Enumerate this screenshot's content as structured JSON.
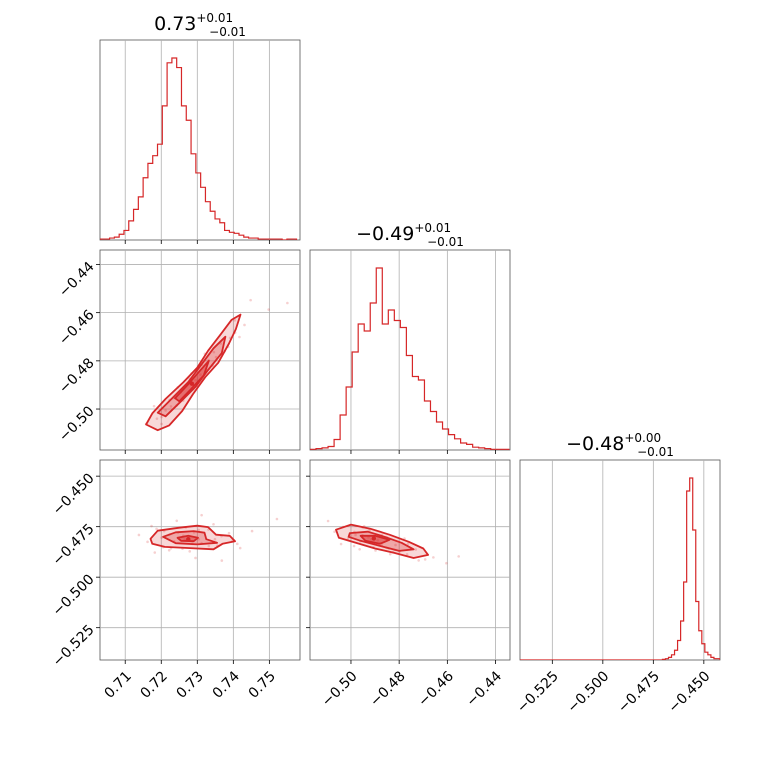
{
  "color": "#d62728",
  "chart_data": {
    "type": "corner",
    "grid": true,
    "parameters": [
      {
        "title": {
          "value": "0.73",
          "plus": "+0.01",
          "minus": "−0.01"
        },
        "range": [
          0.703,
          0.7585
        ],
        "ticks": [
          0.71,
          0.72,
          0.73,
          0.74,
          0.75
        ],
        "tick_labels": [
          "0.71",
          "0.72",
          "0.73",
          "0.74",
          "0.75"
        ],
        "hist": {
          "edges_start": 0.703,
          "bin_width": 0.00133,
          "counts": [
            1,
            1,
            2,
            3,
            6,
            10,
            20,
            32,
            45,
            65,
            80,
            88,
            100,
            140,
            185,
            190,
            180,
            140,
            125,
            90,
            70,
            55,
            40,
            30,
            22,
            18,
            10,
            8,
            7,
            5,
            3,
            2,
            2,
            1,
            1,
            1,
            1,
            1,
            0,
            1,
            1
          ]
        }
      },
      {
        "title": {
          "value": "−0.49",
          "plus": "+0.01",
          "minus": "−0.01"
        },
        "range": [
          -0.517,
          -0.434
        ],
        "ticks": [
          -0.5,
          -0.48,
          -0.46,
          -0.44
        ],
        "tick_labels": [
          "−0.50",
          "−0.48",
          "−0.46",
          "−0.44"
        ],
        "hist": {
          "edges_start": -0.517,
          "bin_width": 0.0025,
          "counts": [
            1,
            2,
            3,
            5,
            15,
            50,
            90,
            140,
            180,
            170,
            210,
            260,
            180,
            200,
            185,
            175,
            135,
            105,
            100,
            70,
            55,
            40,
            30,
            22,
            16,
            10,
            8,
            4,
            3,
            2,
            1,
            1,
            1
          ]
        }
      },
      {
        "title": {
          "value": "−0.48",
          "plus": "+0.00",
          "minus": "−0.01"
        },
        "range": [
          -0.541,
          -0.442
        ],
        "ticks": [
          -0.525,
          -0.5,
          -0.475,
          -0.45
        ],
        "tick_labels": [
          "−0.525",
          "−0.500",
          "−0.475",
          "−0.450"
        ],
        "hist": {
          "edges_start": -0.541,
          "bin_width": 0.0015,
          "counts": [
            0,
            0,
            0,
            0,
            0,
            0,
            0,
            0,
            0,
            0,
            0,
            0,
            0,
            0,
            0,
            0,
            0,
            0,
            0,
            0,
            0,
            0,
            0,
            0,
            0,
            0,
            0,
            0,
            0,
            0,
            0,
            0,
            0,
            0,
            0,
            0,
            0,
            0,
            0,
            0,
            0,
            0,
            0,
            0,
            0,
            0,
            0,
            1,
            2,
            4,
            8,
            15,
            30,
            60,
            120,
            260,
            280,
            200,
            90,
            45,
            25,
            12,
            8,
            4,
            2,
            2,
            1,
            0
          ]
        }
      }
    ],
    "pairs": [
      {
        "x_param": 0,
        "y_param": 1,
        "mean": [
          0.7285,
          -0.4895
        ],
        "points": [
          [
            0.7265,
            -0.4909
          ],
          [
            0.7243,
            -0.4985
          ],
          [
            0.7201,
            -0.5033
          ],
          [
            0.7365,
            -0.4728
          ],
          [
            0.7312,
            -0.4816
          ],
          [
            0.7275,
            -0.4897
          ],
          [
            0.7223,
            -0.4962
          ],
          [
            0.7405,
            -0.4683
          ],
          [
            0.7284,
            -0.4852
          ],
          [
            0.7346,
            -0.4764
          ],
          [
            0.7188,
            -0.504
          ],
          [
            0.7254,
            -0.4931
          ],
          [
            0.7332,
            -0.4798
          ],
          [
            0.7295,
            -0.488
          ],
          [
            0.7448,
            -0.4548
          ],
          [
            0.7391,
            -0.4705
          ],
          [
            0.7212,
            -0.5006
          ],
          [
            0.7325,
            -0.4836
          ],
          [
            0.7267,
            -0.4943
          ],
          [
            0.7352,
            -0.4785
          ],
          [
            0.7498,
            -0.4587
          ],
          [
            0.718,
            -0.4988
          ],
          [
            0.7431,
            -0.4651
          ],
          [
            0.7236,
            -0.4954
          ],
          [
            0.7309,
            -0.4857
          ],
          [
            0.7386,
            -0.4742
          ],
          [
            0.7201,
            -0.5062
          ],
          [
            0.7279,
            -0.4874
          ],
          [
            0.7417,
            -0.4701
          ],
          [
            0.7246,
            -0.491
          ],
          [
            0.755,
            -0.456
          ],
          [
            0.7344,
            -0.4822
          ],
          [
            0.7261,
            -0.4965
          ],
          [
            0.7158,
            -0.5062
          ],
          [
            0.7321,
            -0.4771
          ],
          [
            0.7404,
            -0.4632
          ],
          [
            0.7289,
            -0.4918
          ],
          [
            0.7227,
            -0.4989
          ],
          [
            0.7376,
            -0.476
          ],
          [
            0.7297,
            -0.4843
          ]
        ],
        "contours": [
          [
            [
              0.7158,
              -0.5064
            ],
            [
              0.7175,
              -0.5018
            ],
            [
              0.7212,
              -0.4958
            ],
            [
              0.7262,
              -0.4888
            ],
            [
              0.73,
              -0.4828
            ],
            [
              0.733,
              -0.4758
            ],
            [
              0.7365,
              -0.469
            ],
            [
              0.7395,
              -0.463
            ],
            [
              0.742,
              -0.4608
            ],
            [
              0.7407,
              -0.4668
            ],
            [
              0.7388,
              -0.4728
            ],
            [
              0.7358,
              -0.4808
            ],
            [
              0.7322,
              -0.4868
            ],
            [
              0.7288,
              -0.4938
            ],
            [
              0.7258,
              -0.5008
            ],
            [
              0.7222,
              -0.5068
            ],
            [
              0.719,
              -0.5088
            ]
          ],
          [
            [
              0.719,
              -0.5015
            ],
            [
              0.7235,
              -0.4948
            ],
            [
              0.7275,
              -0.4888
            ],
            [
              0.731,
              -0.4818
            ],
            [
              0.7345,
              -0.4748
            ],
            [
              0.7378,
              -0.47
            ],
            [
              0.7368,
              -0.4768
            ],
            [
              0.733,
              -0.4838
            ],
            [
              0.7295,
              -0.4908
            ],
            [
              0.7252,
              -0.4972
            ],
            [
              0.7212,
              -0.503
            ]
          ],
          [
            [
              0.7238,
              -0.4955
            ],
            [
              0.727,
              -0.4905
            ],
            [
              0.7305,
              -0.4845
            ],
            [
              0.7332,
              -0.48
            ],
            [
              0.7318,
              -0.486
            ],
            [
              0.7282,
              -0.4918
            ],
            [
              0.725,
              -0.4968
            ]
          ]
        ]
      },
      {
        "x_param": 0,
        "y_param": 2,
        "mean": [
          0.7275,
          -0.4812
        ],
        "points": [
          [
            0.7265,
            -0.4815
          ],
          [
            0.7223,
            -0.4789
          ],
          [
            0.7312,
            -0.4832
          ],
          [
            0.7187,
            -0.4761
          ],
          [
            0.7356,
            -0.4844
          ],
          [
            0.7248,
            -0.4807
          ],
          [
            0.7291,
            -0.4778
          ],
          [
            0.7205,
            -0.4851
          ],
          [
            0.7398,
            -0.4819
          ],
          [
            0.7331,
            -0.4764
          ],
          [
            0.7162,
            -0.4825
          ],
          [
            0.7279,
            -0.4872
          ],
          [
            0.7243,
            -0.4721
          ],
          [
            0.7367,
            -0.4797
          ],
          [
            0.7201,
            -0.4804
          ],
          [
            0.7304,
            -0.4812
          ],
          [
            0.7452,
            -0.4772
          ],
          [
            0.7138,
            -0.4791
          ],
          [
            0.7286,
            -0.4835
          ],
          [
            0.7222,
            -0.4867
          ],
          [
            0.7345,
            -0.4738
          ],
          [
            0.7259,
            -0.4859
          ],
          [
            0.7419,
            -0.4856
          ],
          [
            0.7173,
            -0.4747
          ],
          [
            0.7312,
            -0.4693
          ],
          [
            0.7236,
            -0.4823
          ],
          [
            0.7388,
            -0.4782
          ],
          [
            0.7295,
            -0.4905
          ],
          [
            0.7208,
            -0.4772
          ],
          [
            0.7332,
            -0.4846
          ],
          [
            0.7521,
            -0.4712
          ],
          [
            0.7268,
            -0.4754
          ],
          [
            0.7182,
            -0.4878
          ],
          [
            0.7349,
            -0.4812
          ],
          [
            0.7247,
            -0.4779
          ],
          [
            0.7411,
            -0.4835
          ],
          [
            0.7304,
            -0.4766
          ],
          [
            0.7227,
            -0.4857
          ],
          [
            0.7368,
            -0.4918
          ],
          [
            0.7261,
            -0.4795
          ]
        ],
        "contours": [
          [
            [
              0.717,
              -0.481
            ],
            [
              0.719,
              -0.477
            ],
            [
              0.725,
              -0.4755
            ],
            [
              0.73,
              -0.4745
            ],
            [
              0.733,
              -0.4752
            ],
            [
              0.7352,
              -0.479
            ],
            [
              0.739,
              -0.4795
            ],
            [
              0.7405,
              -0.4822
            ],
            [
              0.737,
              -0.4835
            ],
            [
              0.7345,
              -0.4862
            ],
            [
              0.728,
              -0.4856
            ],
            [
              0.721,
              -0.485
            ],
            [
              0.7175,
              -0.4835
            ]
          ],
          [
            [
              0.7205,
              -0.48
            ],
            [
              0.724,
              -0.4778
            ],
            [
              0.729,
              -0.4772
            ],
            [
              0.732,
              -0.478
            ],
            [
              0.7325,
              -0.4812
            ],
            [
              0.7355,
              -0.483
            ],
            [
              0.73,
              -0.4838
            ],
            [
              0.724,
              -0.4832
            ]
          ],
          [
            [
              0.7245,
              -0.4805
            ],
            [
              0.7275,
              -0.4795
            ],
            [
              0.7302,
              -0.4805
            ],
            [
              0.729,
              -0.4822
            ],
            [
              0.7255,
              -0.482
            ]
          ]
        ]
      },
      {
        "x_param": 1,
        "y_param": 2,
        "mean": [
          -0.4905,
          -0.4808
        ],
        "points": [
          [
            -0.4915,
            -0.4812
          ],
          [
            -0.4986,
            -0.4776
          ],
          [
            -0.4843,
            -0.4859
          ],
          [
            -0.4798,
            -0.4872
          ],
          [
            -0.4952,
            -0.4793
          ],
          [
            -0.4879,
            -0.4832
          ],
          [
            -0.5032,
            -0.4751
          ],
          [
            -0.4767,
            -0.4887
          ],
          [
            -0.4923,
            -0.4768
          ],
          [
            -0.4851,
            -0.4803
          ],
          [
            -0.4987,
            -0.4846
          ],
          [
            -0.4692,
            -0.4912
          ],
          [
            -0.4936,
            -0.4825
          ],
          [
            -0.4815,
            -0.4841
          ],
          [
            -0.5068,
            -0.4775
          ],
          [
            -0.4898,
            -0.4868
          ],
          [
            -0.4731,
            -0.4863
          ],
          [
            -0.4961,
            -0.4822
          ],
          [
            -0.4872,
            -0.4792
          ],
          [
            -0.4604,
            -0.4931
          ],
          [
            -0.5012,
            -0.4808
          ],
          [
            -0.4826,
            -0.4876
          ],
          [
            -0.4945,
            -0.4748
          ],
          [
            -0.4763,
            -0.4835
          ],
          [
            -0.4907,
            -0.4852
          ],
          [
            -0.4658,
            -0.4902
          ],
          [
            -0.4981,
            -0.4791
          ],
          [
            -0.4852,
            -0.4855
          ],
          [
            -0.5095,
            -0.4722
          ],
          [
            -0.4719,
            -0.4917
          ],
          [
            -0.4927,
            -0.4803
          ],
          [
            -0.4818,
            -0.4865
          ],
          [
            -0.4553,
            -0.4897
          ],
          [
            -0.4964,
            -0.4862
          ],
          [
            -0.4889,
            -0.4817
          ],
          [
            -0.4778,
            -0.4809
          ],
          [
            -0.5041,
            -0.4836
          ],
          [
            -0.4837,
            -0.4886
          ],
          [
            -0.4951,
            -0.4754
          ],
          [
            -0.4872,
            -0.4843
          ]
        ],
        "contours": [
          [
            [
              -0.5062,
              -0.4765
            ],
            [
              -0.5,
              -0.474
            ],
            [
              -0.492,
              -0.476
            ],
            [
              -0.484,
              -0.479
            ],
            [
              -0.476,
              -0.4825
            ],
            [
              -0.47,
              -0.4858
            ],
            [
              -0.468,
              -0.489
            ],
            [
              -0.474,
              -0.4905
            ],
            [
              -0.482,
              -0.488
            ],
            [
              -0.49,
              -0.4858
            ],
            [
              -0.498,
              -0.483
            ],
            [
              -0.505,
              -0.4805
            ]
          ],
          [
            [
              -0.5005,
              -0.4782
            ],
            [
              -0.493,
              -0.4775
            ],
            [
              -0.486,
              -0.48
            ],
            [
              -0.479,
              -0.483
            ],
            [
              -0.474,
              -0.4862
            ],
            [
              -0.48,
              -0.487
            ],
            [
              -0.488,
              -0.4845
            ],
            [
              -0.496,
              -0.482
            ],
            [
              -0.501,
              -0.48
            ]
          ],
          [
            [
              -0.496,
              -0.4795
            ],
            [
              -0.49,
              -0.4795
            ],
            [
              -0.484,
              -0.4815
            ],
            [
              -0.488,
              -0.4835
            ],
            [
              -0.494,
              -0.482
            ]
          ]
        ]
      }
    ]
  }
}
